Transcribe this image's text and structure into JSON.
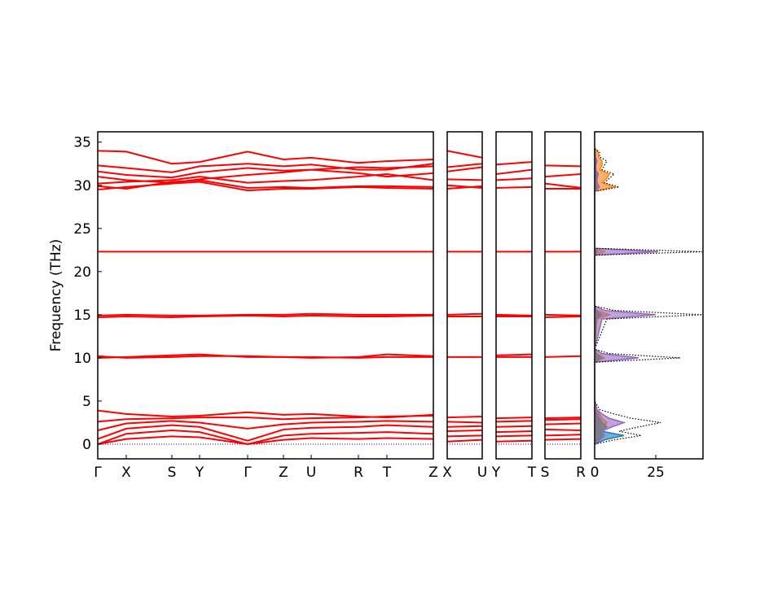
{
  "chart_data": [
    {
      "type": "line",
      "ylabel": "Frequency (THz)",
      "ylim": [
        -1.7,
        36.2
      ],
      "yticks": [
        0,
        5,
        10,
        15,
        20,
        25,
        30,
        35
      ],
      "xlim": [
        0,
        4.12
      ],
      "x": [
        0,
        0.35,
        0.91,
        1.25,
        1.84,
        2.28,
        2.62,
        3.2,
        3.55,
        4.12
      ],
      "xticks": [
        {
          "value": 0,
          "label": "Γ"
        },
        {
          "value": 0.35,
          "label": "X"
        },
        {
          "value": 0.91,
          "label": "S"
        },
        {
          "value": 1.25,
          "label": "Y"
        },
        {
          "value": 1.84,
          "label": "Γ"
        },
        {
          "value": 2.28,
          "label": "Z"
        },
        {
          "value": 2.62,
          "label": "U"
        },
        {
          "value": 3.2,
          "label": "R"
        },
        {
          "value": 3.55,
          "label": "T"
        },
        {
          "value": 4.12,
          "label": "Z"
        }
      ],
      "color": "#ff0000",
      "hline": 0,
      "hline_color": "#0000cc",
      "series": [
        {
          "values": [
            0,
            0.6,
            0.9,
            0.8,
            0,
            0.5,
            0.7,
            0.6,
            0.7,
            0.6
          ]
        },
        {
          "values": [
            0,
            1.2,
            1.6,
            1.4,
            0,
            1,
            1.2,
            1.3,
            1.4,
            1.2
          ]
        },
        {
          "values": [
            0.6,
            1.8,
            2.2,
            2,
            0.4,
            1.7,
            1.9,
            2,
            2.2,
            2
          ]
        },
        {
          "values": [
            1.6,
            2.4,
            2.7,
            2.5,
            1.8,
            2.3,
            2.5,
            2.6,
            2.7,
            2.6
          ]
        },
        {
          "values": [
            2.6,
            2.9,
            3,
            3.1,
            3.1,
            2.9,
            3,
            3.1,
            3.2,
            3.3
          ]
        },
        {
          "values": [
            3.9,
            3.5,
            3.2,
            3.3,
            3.7,
            3.4,
            3.5,
            3.2,
            3.1,
            3.4
          ]
        },
        {
          "values": [
            10,
            10.1,
            10.3,
            10.4,
            10.1,
            10.1,
            10,
            10.1,
            10.4,
            10.2
          ]
        },
        {
          "values": [
            10.2,
            10,
            10.1,
            10.2,
            10.2,
            10.1,
            10.1,
            10,
            10.1,
            10.1
          ]
        },
        {
          "values": [
            14.7,
            14.8,
            14.7,
            14.8,
            14.9,
            14.8,
            14.9,
            14.8,
            14.8,
            14.9
          ]
        },
        {
          "values": [
            14.9,
            15,
            14.9,
            14.9,
            15,
            15,
            15.1,
            15,
            15,
            15
          ]
        },
        {
          "values": [
            22.3,
            22.3,
            22.3,
            22.3,
            22.3,
            22.3,
            22.3,
            22.3,
            22.3,
            22.3
          ]
        },
        {
          "values": [
            29.5,
            29.8,
            30.2,
            30.4,
            29.4,
            29.6,
            29.6,
            29.8,
            29.7,
            29.6
          ]
        },
        {
          "values": [
            29.9,
            29.6,
            30.4,
            30.6,
            29.7,
            29.8,
            29.7,
            29.9,
            29.9,
            29.8
          ]
        },
        {
          "values": [
            30.2,
            30.4,
            30.6,
            31,
            30.3,
            30.5,
            30.6,
            31,
            31.3,
            30.6
          ]
        },
        {
          "values": [
            31,
            30.6,
            30.3,
            30.7,
            31.2,
            31.5,
            31.8,
            31.4,
            31,
            31.4
          ]
        },
        {
          "values": [
            31.6,
            31.2,
            30.9,
            31.5,
            32,
            31.7,
            31.8,
            32.1,
            32,
            32.2
          ]
        },
        {
          "values": [
            32.3,
            32,
            31.5,
            32.2,
            32.5,
            32.2,
            32.4,
            31.8,
            31.8,
            32.5
          ]
        },
        {
          "values": [
            34,
            33.9,
            32.5,
            32.7,
            33.9,
            33,
            33.2,
            32.6,
            32.8,
            33
          ]
        }
      ]
    },
    {
      "type": "line",
      "xlim": [
        0,
        1
      ],
      "x": [
        0,
        1
      ],
      "xticks": [
        {
          "value": 0,
          "label": "X"
        },
        {
          "value": 1,
          "label": "U"
        }
      ],
      "color": "#ff0000",
      "hline": 0,
      "hline_color": "#0000cc",
      "series": [
        {
          "values": [
            0.3,
            0.5
          ]
        },
        {
          "values": [
            0.9,
            1
          ]
        },
        {
          "values": [
            1.5,
            1.6
          ]
        },
        {
          "values": [
            2,
            2.1
          ]
        },
        {
          "values": [
            2.6,
            2.5
          ]
        },
        {
          "values": [
            3.1,
            3.2
          ]
        },
        {
          "values": [
            10.1,
            10.1
          ]
        },
        {
          "values": [
            14.8,
            14.8
          ]
        },
        {
          "values": [
            15,
            15.1
          ]
        },
        {
          "values": [
            22.3,
            22.3
          ]
        },
        {
          "values": [
            29.6,
            29.9
          ]
        },
        {
          "values": [
            30,
            29.7
          ]
        },
        {
          "values": [
            30.7,
            30.6
          ]
        },
        {
          "values": [
            31.6,
            32.1
          ]
        },
        {
          "values": [
            32.1,
            32.5
          ]
        },
        {
          "values": [
            34,
            33.2
          ]
        }
      ]
    },
    {
      "type": "line",
      "xlim": [
        0,
        1
      ],
      "x": [
        0,
        1
      ],
      "xticks": [
        {
          "value": 0,
          "label": "Y"
        },
        {
          "value": 1,
          "label": "T"
        }
      ],
      "color": "#ff0000",
      "hline": 0,
      "hline_color": "#0000cc",
      "series": [
        {
          "values": [
            0.3,
            0.4
          ]
        },
        {
          "values": [
            0.9,
            1
          ]
        },
        {
          "values": [
            1.4,
            1.5
          ]
        },
        {
          "values": [
            2,
            2.1
          ]
        },
        {
          "values": [
            2.6,
            2.7
          ]
        },
        {
          "values": [
            3,
            3.1
          ]
        },
        {
          "values": [
            10.3,
            10.4
          ]
        },
        {
          "values": [
            10.1,
            10.1
          ]
        },
        {
          "values": [
            14.8,
            14.8
          ]
        },
        {
          "values": [
            15,
            14.9
          ]
        },
        {
          "values": [
            22.3,
            22.3
          ]
        },
        {
          "values": [
            29.7,
            29.8
          ]
        },
        {
          "values": [
            30.6,
            30.8
          ]
        },
        {
          "values": [
            31.3,
            31.8
          ]
        },
        {
          "values": [
            32.4,
            32.7
          ]
        }
      ]
    },
    {
      "type": "line",
      "xlim": [
        0,
        1
      ],
      "x": [
        0,
        1
      ],
      "xticks": [
        {
          "value": 0,
          "label": "S"
        },
        {
          "value": 1,
          "label": "R"
        }
      ],
      "color": "#ff0000",
      "hline": 0,
      "hline_color": "#0000cc",
      "series": [
        {
          "values": [
            0.5,
            0.6
          ]
        },
        {
          "values": [
            1,
            1.1
          ]
        },
        {
          "values": [
            1.7,
            1.6
          ]
        },
        {
          "values": [
            2.3,
            2.4
          ]
        },
        {
          "values": [
            2.8,
            2.9
          ]
        },
        {
          "values": [
            3,
            3.1
          ]
        },
        {
          "values": [
            10.1,
            10.2
          ]
        },
        {
          "values": [
            14.7,
            14.8
          ]
        },
        {
          "values": [
            15,
            14.9
          ]
        },
        {
          "values": [
            22.3,
            22.3
          ]
        },
        {
          "values": [
            29.6,
            29.6
          ]
        },
        {
          "values": [
            30.2,
            29.7
          ]
        },
        {
          "values": [
            31,
            31.3
          ]
        },
        {
          "values": [
            32.3,
            32.2
          ]
        }
      ]
    },
    {
      "type": "line",
      "orientation": "horizontal",
      "xlim": [
        0,
        44.3
      ],
      "xticks": [
        0,
        25
      ],
      "y": [
        0,
        0.5,
        1,
        1.5,
        2,
        2.5,
        3,
        3.5,
        4,
        5,
        9.5,
        10,
        10.5,
        11,
        14.5,
        15,
        15.5,
        16,
        21.9,
        22.3,
        22.7,
        29.3,
        29.8,
        30.3,
        30.8,
        31.3,
        31.8,
        32.3,
        32.8,
        33.3,
        33.8,
        34.3
      ],
      "series": [
        {
          "color": "#1f77b4",
          "values": [
            0,
            4,
            12,
            3,
            2,
            3,
            1,
            0.5,
            0,
            0,
            0,
            3,
            0.5,
            0,
            0.5,
            3,
            0.5,
            0,
            0,
            1,
            0,
            0,
            1,
            0.5,
            0.5,
            1,
            0.3,
            0.5,
            0.5,
            0.2,
            0.2,
            0
          ]
        },
        {
          "color": "#ff7f0e",
          "values": [
            0,
            1,
            2,
            2,
            4,
            5,
            3,
            2,
            0.5,
            0,
            0,
            4,
            1,
            0,
            1,
            6,
            1,
            0,
            0,
            4,
            0,
            0,
            8,
            3,
            5,
            6,
            2,
            3,
            3,
            1.5,
            1.5,
            0
          ]
        },
        {
          "color": "#2ca02c",
          "values": [
            0,
            1.5,
            3,
            2,
            5,
            3,
            2,
            1,
            0,
            0,
            0,
            2,
            0.5,
            0,
            0.5,
            2,
            0.5,
            0,
            0,
            1,
            0,
            0,
            1,
            0.5,
            0.5,
            0.5,
            0.3,
            0.3,
            0.3,
            0.1,
            0.1,
            0
          ]
        },
        {
          "color": "#9467bd",
          "values": [
            0,
            2,
            4,
            3,
            7,
            12,
            6,
            3,
            1,
            0,
            0,
            18,
            3,
            0,
            3,
            25,
            4,
            0,
            0,
            26,
            0,
            0,
            2,
            1,
            1,
            1.5,
            0.5,
            0.5,
            1,
            0.3,
            0.3,
            0
          ]
        },
        {
          "color": "#000000",
          "dashed": true,
          "values": [
            0,
            8,
            19,
            10,
            18,
            27,
            15,
            8,
            2,
            0,
            0,
            35,
            6,
            0,
            5,
            44,
            8,
            0,
            0,
            44,
            0,
            0,
            10,
            4,
            6,
            8,
            3,
            4,
            5,
            2,
            2,
            0
          ]
        }
      ]
    }
  ]
}
